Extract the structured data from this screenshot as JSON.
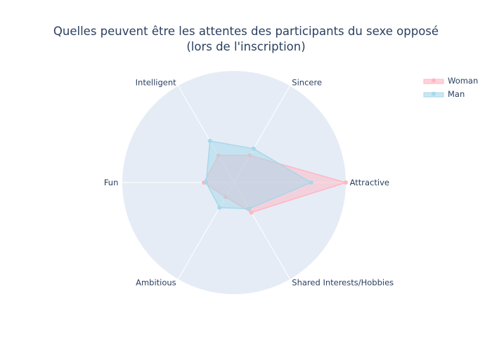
{
  "chart_data": {
    "type": "radar",
    "title_lines": [
      "Quelles peuvent être les attentes des participants du sexe opposé",
      "(lors de l'inscription)"
    ],
    "categories": [
      "Attractive",
      "Sincere",
      "Intelligent",
      "Fun",
      "Ambitious",
      "Shared Interests/Hobbies"
    ],
    "radial_range": [
      0,
      100
    ],
    "grid": true,
    "legend_position": "top-right",
    "series": [
      {
        "name": "Woman",
        "values": [
          100,
          28,
          28,
          27,
          15,
          31
        ],
        "color": "#ffb6c1"
      },
      {
        "name": "Man",
        "values": [
          69,
          35,
          43,
          25,
          26,
          27
        ],
        "color": "#a6d8ea"
      }
    ],
    "colors": {
      "polar_bg": "#e5ecf6",
      "text": "#2a3f5f",
      "grid": "#ffffff"
    }
  }
}
